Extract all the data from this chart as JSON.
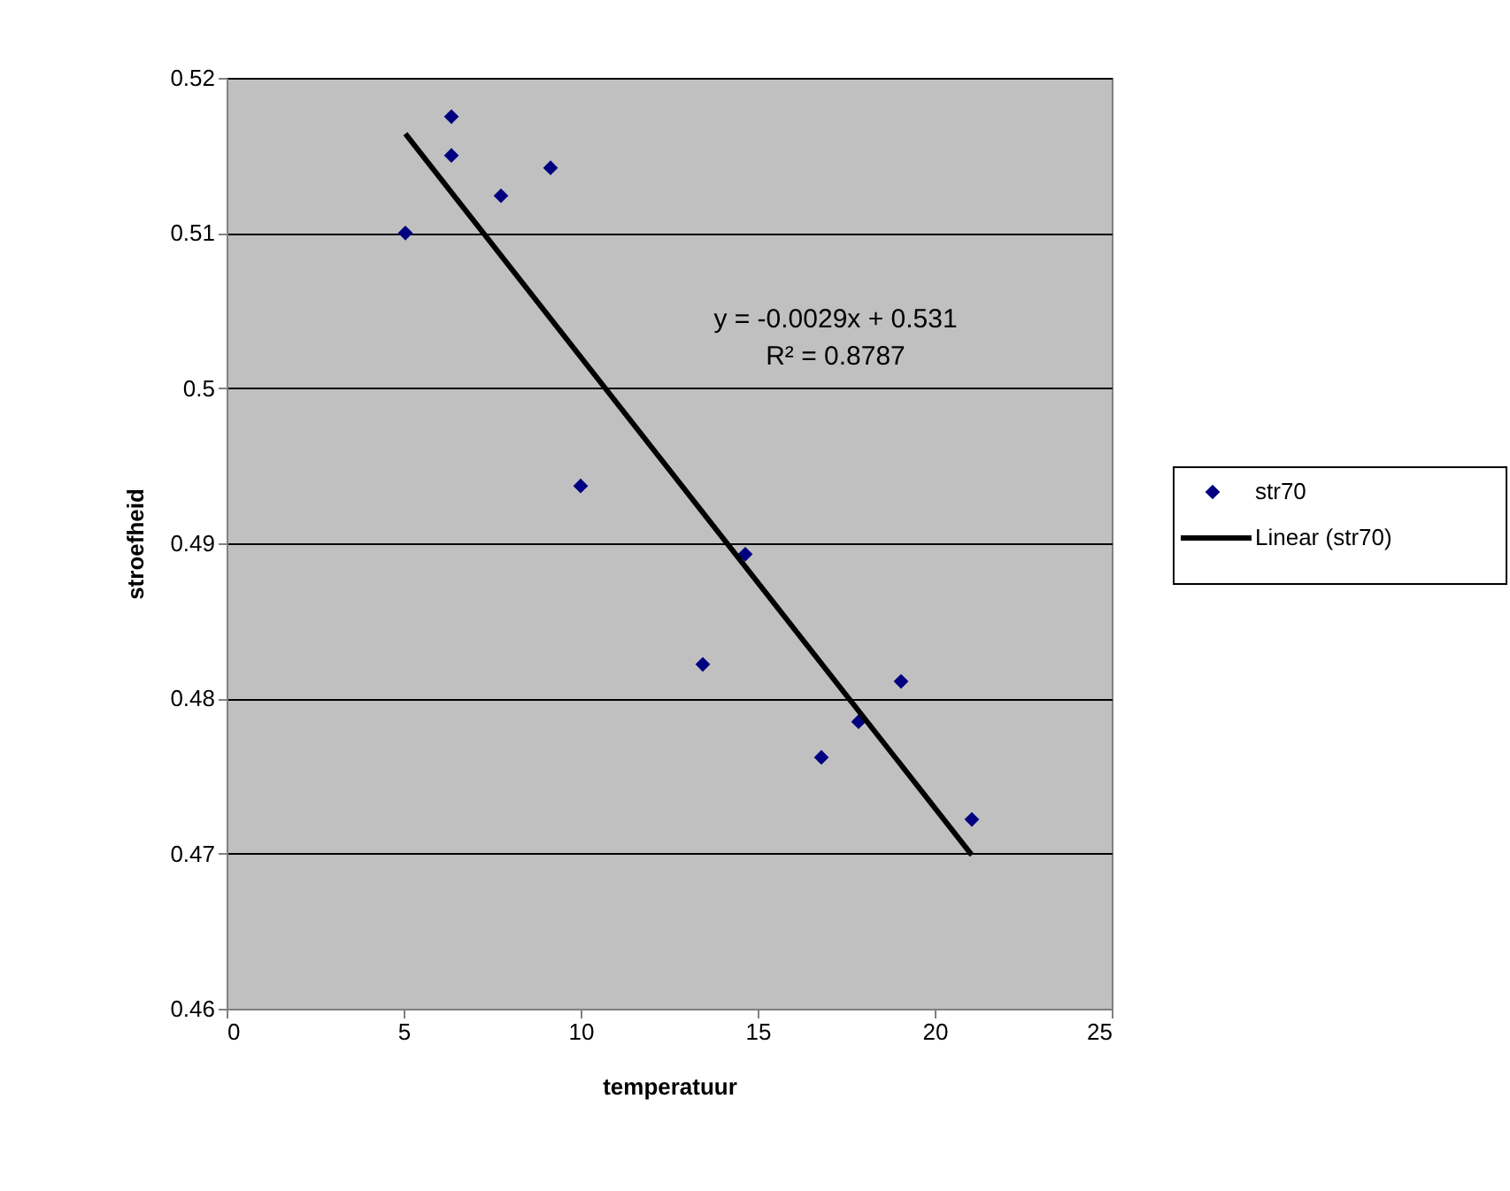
{
  "chart_data": {
    "type": "scatter",
    "xlabel": "temperatuur",
    "ylabel": "stroefheid",
    "xlim": [
      0,
      25
    ],
    "xticks": [
      0,
      5,
      10,
      15,
      20,
      25
    ],
    "ylim": [
      0.46,
      0.52
    ],
    "yticks": [
      0.46,
      0.47,
      0.48,
      0.49,
      0.5,
      0.51,
      0.52
    ],
    "grid": "y",
    "legend": "right",
    "annotations": [
      "y = -0.0029x + 0.531",
      "R² = 0.8787"
    ],
    "series": [
      {
        "name": "str70",
        "color": "#000080",
        "marker": "diamond",
        "x": [
          5.05,
          6.35,
          6.35,
          7.75,
          9.15,
          10.0,
          13.45,
          14.65,
          16.8,
          17.85,
          19.05,
          21.05
        ],
        "values": [
          0.51,
          0.5175,
          0.515,
          0.5124,
          0.5142,
          0.4937,
          0.4822,
          0.4893,
          0.4762,
          0.4785,
          0.4811,
          0.4722
        ]
      },
      {
        "name": "Linear (str70)",
        "type": "line",
        "marker": "none",
        "color": "#000000",
        "x": [
          5.05,
          21.05
        ],
        "values": [
          0.5164,
          0.4699
        ]
      }
    ]
  }
}
